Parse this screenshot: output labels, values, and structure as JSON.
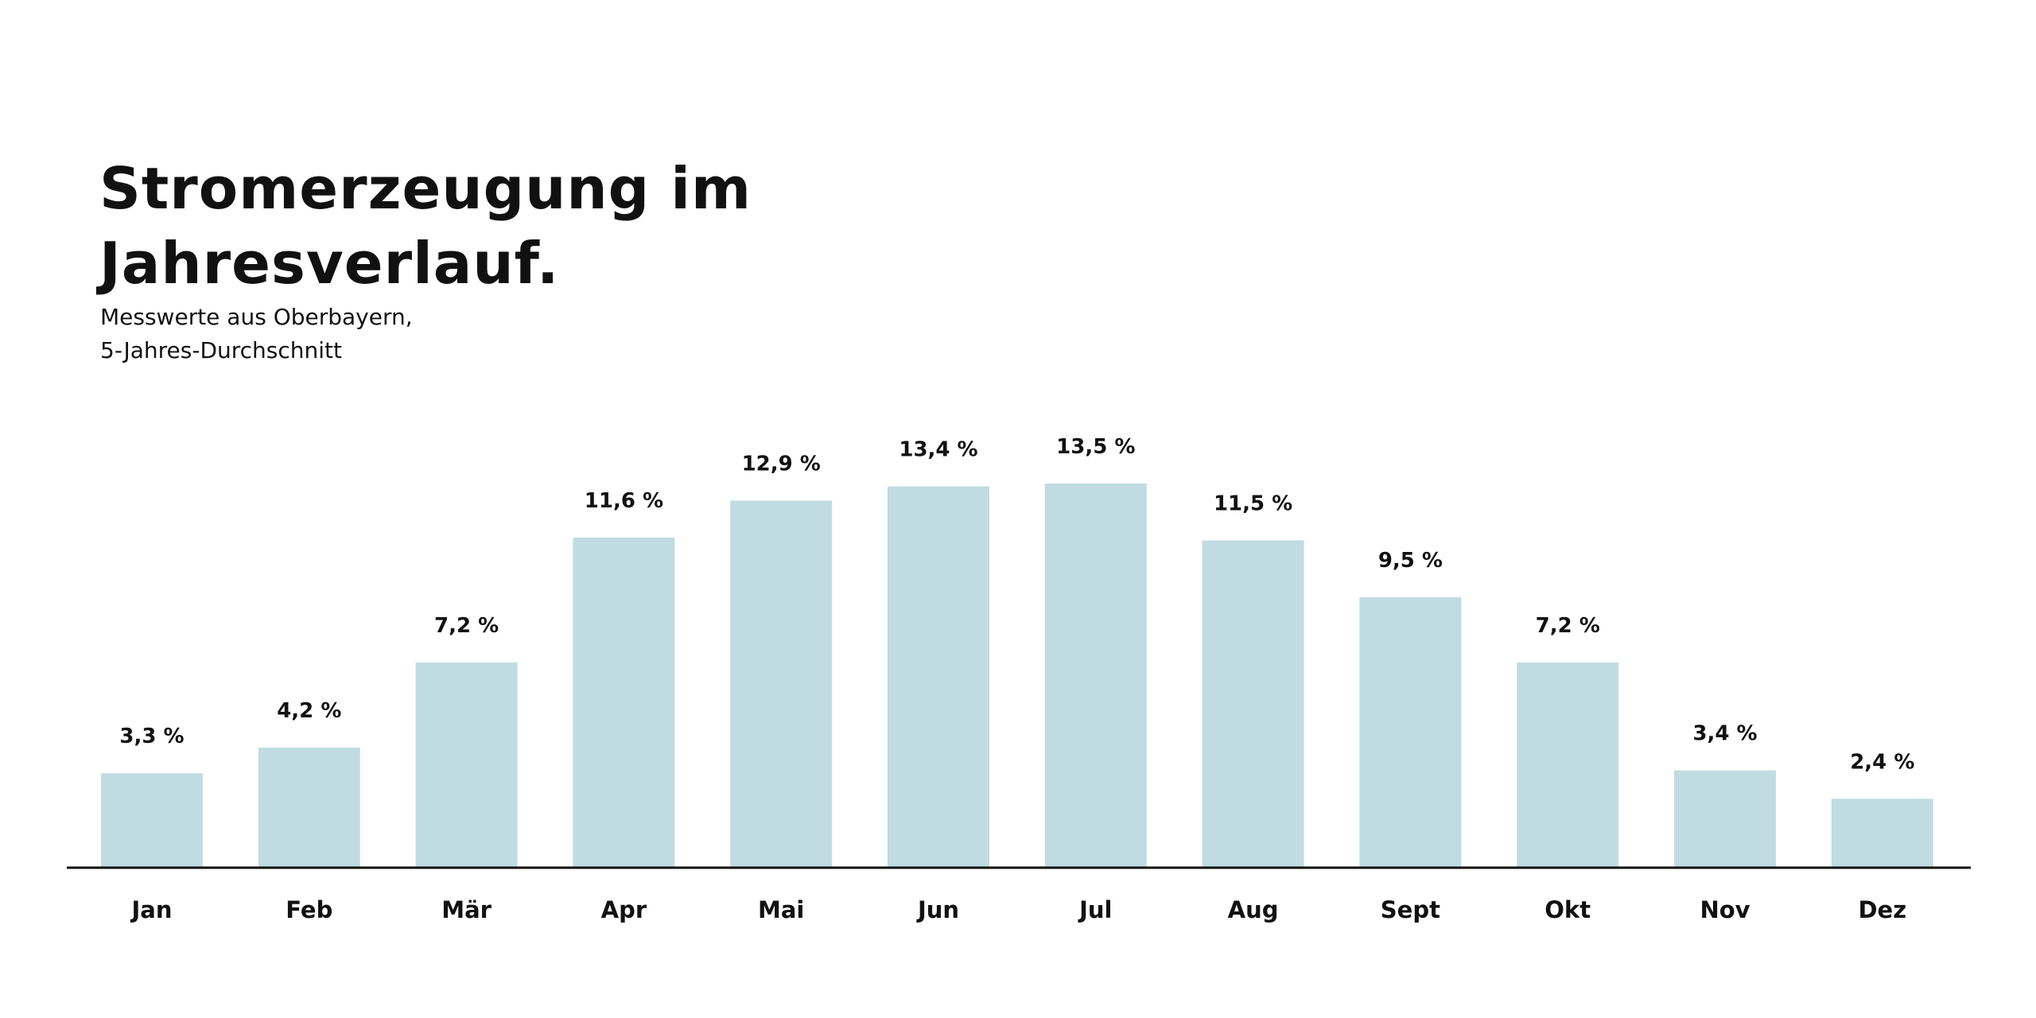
{
  "chart_data": {
    "type": "bar",
    "title": "Stromerzeugung im\nJahresverlauf.",
    "subtitle": "Messwerte aus Oberbayern,\n5-Jahres-Durchschnitt",
    "categories": [
      "Jan",
      "Feb",
      "Mär",
      "Apr",
      "Mai",
      "Jun",
      "Jul",
      "Aug",
      "Sept",
      "Okt",
      "Nov",
      "Dez"
    ],
    "values": [
      3.3,
      4.2,
      7.2,
      11.6,
      12.9,
      13.4,
      13.5,
      11.5,
      9.5,
      7.2,
      3.4,
      2.4
    ],
    "value_labels": [
      "3,3 %",
      "4,2 %",
      "7,2 %",
      "11,6 %",
      "12,9 %",
      "13,4 %",
      "13,5 %",
      "11,5 %",
      "9,5 %",
      "7,2 %",
      "3,4 %",
      "2,4 %"
    ],
    "unit": "%",
    "ylim": [
      0,
      15
    ],
    "grid": false,
    "legend": "none",
    "colors": {
      "bar": "#c0dce2",
      "axis": "#111111",
      "text": "#111111"
    }
  }
}
